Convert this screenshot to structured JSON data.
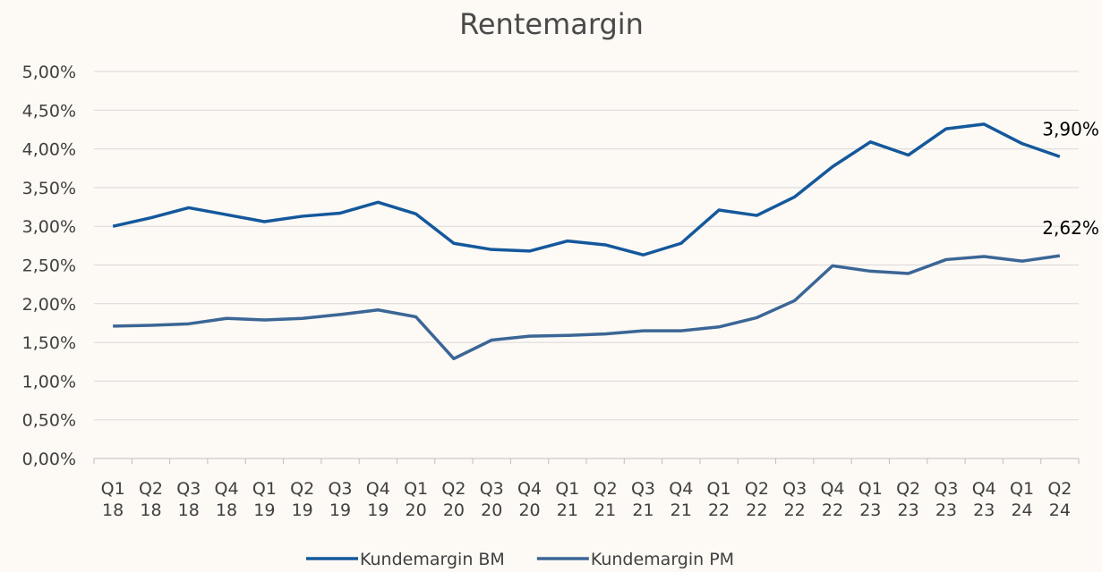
{
  "chart_data": {
    "type": "line",
    "title": "Rentemargin",
    "categories": [
      "Q1 18",
      "Q2 18",
      "Q3 18",
      "Q4 18",
      "Q1 19",
      "Q2 19",
      "Q3 19",
      "Q4 19",
      "Q1 20",
      "Q2 20",
      "Q3 20",
      "Q4 20",
      "Q1 21",
      "Q2 21",
      "Q3 21",
      "Q4 21",
      "Q1 22",
      "Q2 22",
      "Q3 22",
      "Q4 22",
      "Q1 23",
      "Q2 23",
      "Q3 23",
      "Q4 23",
      "Q1 24",
      "Q2 24"
    ],
    "series": [
      {
        "name": "Kundemargin BM",
        "color": "#14589c",
        "values": [
          3.0,
          3.11,
          3.24,
          3.15,
          3.06,
          3.13,
          3.17,
          3.31,
          3.16,
          2.78,
          2.7,
          2.68,
          2.81,
          2.76,
          2.63,
          2.78,
          3.21,
          3.14,
          3.38,
          3.77,
          4.09,
          3.92,
          4.26,
          4.32,
          4.07,
          3.9
        ],
        "value_labels": [
          null,
          null,
          null,
          null,
          null,
          null,
          null,
          null,
          null,
          null,
          null,
          null,
          null,
          null,
          null,
          null,
          null,
          null,
          null,
          null,
          null,
          null,
          null,
          null,
          null,
          "3,90%"
        ]
      },
      {
        "name": "Kundemargin PM",
        "color": "#3b6696",
        "values": [
          1.71,
          1.72,
          1.74,
          1.81,
          1.79,
          1.81,
          1.86,
          1.92,
          1.83,
          1.29,
          1.53,
          1.58,
          1.59,
          1.61,
          1.65,
          1.65,
          1.7,
          1.82,
          2.04,
          2.49,
          2.42,
          2.39,
          2.57,
          2.61,
          2.55,
          2.62
        ],
        "value_labels": [
          null,
          null,
          null,
          null,
          null,
          null,
          null,
          null,
          null,
          null,
          null,
          null,
          null,
          null,
          null,
          null,
          null,
          null,
          null,
          null,
          null,
          null,
          null,
          null,
          null,
          "2,62%"
        ]
      }
    ],
    "ylim": [
      0,
      5
    ],
    "yticks": [
      {
        "value": 0,
        "label": "0,00%"
      },
      {
        "value": 0.5,
        "label": "0,50%"
      },
      {
        "value": 1,
        "label": "1,00%"
      },
      {
        "value": 1.5,
        "label": "1,50%"
      },
      {
        "value": 2,
        "label": "2,00%"
      },
      {
        "value": 2.5,
        "label": "2,50%"
      },
      {
        "value": 3,
        "label": "3,00%"
      },
      {
        "value": 3.5,
        "label": "3,50%"
      },
      {
        "value": 4,
        "label": "4,00%"
      },
      {
        "value": 4.5,
        "label": "4,50%"
      },
      {
        "value": 5,
        "label": "5,00%"
      }
    ],
    "grid": true,
    "legend": "bottom"
  }
}
